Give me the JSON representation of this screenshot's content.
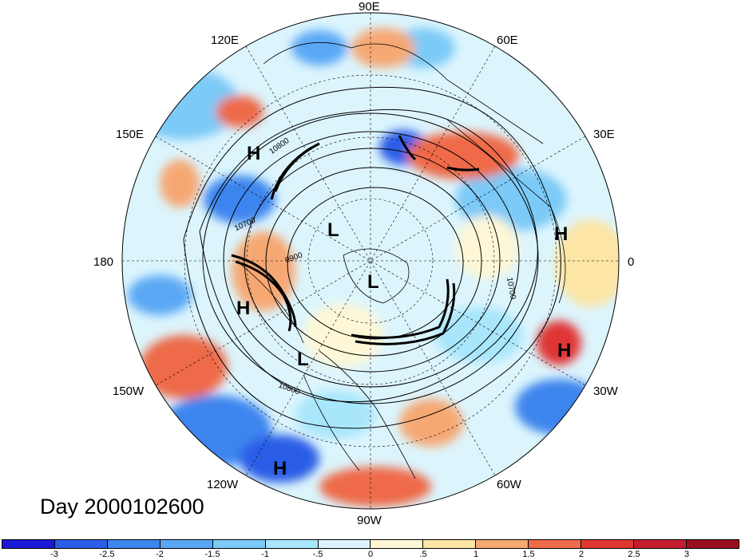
{
  "title": "Day 2000102600",
  "longitude_labels": {
    "lon_90e": "90E",
    "lon_60e": "60E",
    "lon_30e": "30E",
    "lon_0": "0",
    "lon_30w": "30W",
    "lon_60w": "60W",
    "lon_90w": "90W",
    "lon_120w": "120W",
    "lon_150w": "150W",
    "lon_180": "180",
    "lon_150e": "150E",
    "lon_120e": "120E"
  },
  "pressure_centers": [
    "H",
    "L",
    "H",
    "L",
    "L",
    "H",
    "H",
    "H"
  ],
  "contour_labels": [
    "10800",
    "10700",
    "9900",
    "10700",
    "10800"
  ],
  "colorbar": {
    "ticks": [
      "-3",
      "-2.5",
      "-2",
      "-1.5",
      "-1",
      "-.5",
      "0",
      ".5",
      "1",
      "1.5",
      "2",
      "2.5",
      "3"
    ],
    "colors": [
      "#1a1ad6",
      "#2c5de6",
      "#3d85ee",
      "#5aa8f5",
      "#7ccaf7",
      "#a8e6fb",
      "#dcf5fd",
      "#fdf7d7",
      "#fde5a5",
      "#f6a873",
      "#ee6a4a",
      "#e03535",
      "#c41e2e",
      "#9a0f1f"
    ]
  },
  "map_colors": {
    "background": "#ffffff",
    "land_outline": "#000000",
    "grid": "#000000"
  }
}
